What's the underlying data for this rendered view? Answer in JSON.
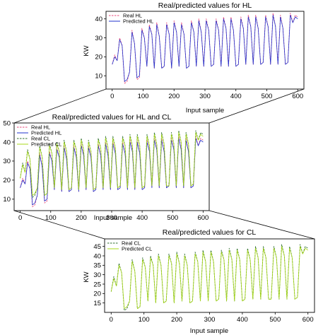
{
  "chart_data": [
    {
      "id": "hl",
      "type": "line",
      "title": "Real/predicted values for HL",
      "xlabel": "Input sample",
      "ylabel": "KW",
      "xlim": [
        -20,
        620
      ],
      "ylim": [
        3,
        44
      ],
      "xticks": [
        0,
        100,
        200,
        300,
        400,
        500,
        600
      ],
      "yticks": [
        10,
        20,
        30,
        40
      ],
      "legend": "top-left",
      "series": [
        {
          "name": "Real HL",
          "color": "#e8487a",
          "dash": true,
          "key": "hl_real"
        },
        {
          "name": "Predicted HL",
          "color": "#2233cc",
          "dash": false,
          "key": "hl_pred"
        }
      ]
    },
    {
      "id": "hlcl",
      "type": "line",
      "title": "Real/predicted values for HL and CL",
      "xlabel": "Input sample",
      "ylabel": "",
      "xlim": [
        -20,
        620
      ],
      "ylim": [
        4,
        50
      ],
      "xticks": [
        0,
        100,
        200,
        300,
        400,
        500,
        600
      ],
      "yticks": [
        10,
        20,
        30,
        40,
        50
      ],
      "legend": "top-left",
      "series": [
        {
          "name": "Real HL",
          "color": "#e8487a",
          "dash": true,
          "key": "hl_real"
        },
        {
          "name": "Predicted HL",
          "color": "#2233cc",
          "dash": false,
          "key": "hl_pred"
        },
        {
          "name": "Real CL",
          "color": "#2d6e2d",
          "dash": true,
          "key": "cl_real"
        },
        {
          "name": "Predicted CL",
          "color": "#a8d818",
          "dash": false,
          "key": "cl_pred"
        }
      ]
    },
    {
      "id": "cl",
      "type": "line",
      "title": "Real/predicted values for CL",
      "xlabel": "Input sample",
      "ylabel": "KW",
      "xlim": [
        -20,
        620
      ],
      "ylim": [
        10,
        49
      ],
      "xticks": [
        0,
        100,
        200,
        300,
        400,
        500,
        600
      ],
      "yticks": [
        15,
        20,
        25,
        30,
        35,
        40,
        45
      ],
      "legend": "top-left",
      "series": [
        {
          "name": "Real CL",
          "color": "#2d6e2d",
          "dash": true,
          "key": "cl_real"
        },
        {
          "name": "Predicted CL",
          "color": "#a8d818",
          "dash": false,
          "key": "cl_pred"
        }
      ]
    }
  ],
  "data": {
    "x": [
      0,
      8,
      16,
      24,
      32,
      40,
      48,
      56,
      64,
      72,
      80,
      88,
      96,
      104,
      112,
      120,
      128,
      136,
      144,
      152,
      160,
      168,
      176,
      184,
      192,
      200,
      208,
      216,
      224,
      232,
      240,
      248,
      256,
      264,
      272,
      280,
      288,
      296,
      304,
      312,
      320,
      328,
      336,
      344,
      352,
      360,
      368,
      376,
      384,
      392,
      400,
      408,
      416,
      424,
      432,
      440,
      448,
      456,
      464,
      472,
      480,
      488,
      496,
      504,
      512,
      520,
      528,
      536,
      544,
      552,
      560,
      568,
      576,
      584,
      592,
      600
    ],
    "hl_real": [
      16,
      21,
      18,
      30,
      26,
      6,
      7,
      12,
      34,
      27,
      8,
      9,
      35,
      30,
      15,
      37,
      32,
      14,
      38,
      31,
      14,
      15,
      38,
      32,
      14,
      39,
      33,
      15,
      38,
      32,
      14,
      15,
      39,
      33,
      15,
      40,
      33,
      15,
      40,
      34,
      15,
      16,
      40,
      34,
      15,
      41,
      35,
      15,
      41,
      34,
      15,
      16,
      41,
      35,
      16,
      42,
      36,
      16,
      42,
      35,
      16,
      17,
      42,
      36,
      16,
      43,
      36,
      16,
      42,
      35,
      16,
      17,
      43,
      38,
      42,
      41
    ],
    "hl_pred": [
      16,
      20,
      18,
      29,
      26,
      7,
      8,
      12,
      33,
      27,
      9,
      10,
      34,
      30,
      15,
      36,
      32,
      14,
      37,
      31,
      14,
      15,
      37,
      32,
      14,
      38,
      33,
      15,
      37,
      32,
      14,
      15,
      38,
      33,
      15,
      39,
      33,
      15,
      39,
      34,
      15,
      16,
      39,
      34,
      15,
      40,
      35,
      15,
      40,
      34,
      15,
      16,
      40,
      35,
      16,
      41,
      36,
      16,
      41,
      35,
      16,
      17,
      41,
      36,
      16,
      42,
      36,
      16,
      41,
      35,
      16,
      17,
      42,
      38,
      41,
      40
    ],
    "cl_real": [
      21,
      29,
      24,
      36,
      31,
      11,
      12,
      16,
      38,
      32,
      12,
      13,
      39,
      34,
      16,
      40,
      35,
      15,
      41,
      35,
      15,
      16,
      41,
      36,
      15,
      42,
      36,
      16,
      41,
      35,
      15,
      16,
      42,
      37,
      16,
      43,
      37,
      16,
      43,
      37,
      16,
      17,
      43,
      38,
      16,
      44,
      38,
      16,
      44,
      38,
      16,
      17,
      44,
      38,
      17,
      45,
      39,
      17,
      45,
      39,
      17,
      17,
      45,
      39,
      17,
      46,
      40,
      17,
      45,
      39,
      17,
      18,
      46,
      41,
      45,
      44
    ],
    "cl_pred": [
      21,
      28,
      24,
      35,
      31,
      12,
      13,
      16,
      37,
      32,
      12,
      13,
      38,
      34,
      16,
      39,
      35,
      15,
      40,
      35,
      15,
      16,
      40,
      36,
      15,
      41,
      36,
      16,
      40,
      35,
      15,
      16,
      41,
      37,
      16,
      42,
      37,
      16,
      42,
      37,
      16,
      17,
      42,
      38,
      16,
      43,
      38,
      16,
      43,
      38,
      16,
      17,
      43,
      38,
      17,
      44,
      39,
      17,
      44,
      39,
      17,
      17,
      44,
      39,
      17,
      45,
      40,
      17,
      44,
      39,
      17,
      18,
      45,
      41,
      44,
      43
    ]
  }
}
